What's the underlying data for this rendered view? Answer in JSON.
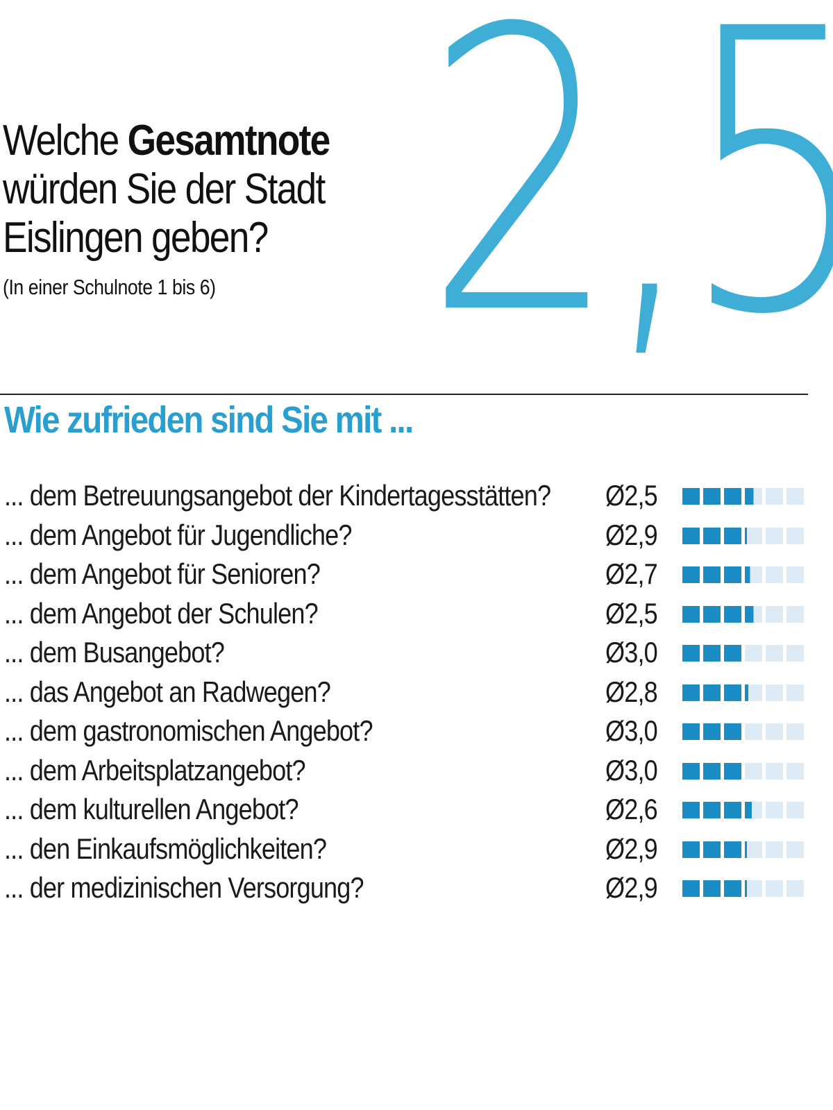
{
  "question": {
    "line1_normal": "Welche ",
    "line1_bold": "Gesamtnote",
    "line2": "würden Sie der Stadt",
    "line3": "Eislingen geben?",
    "subtitle": "(In einer Schulnote 1 bis 6)"
  },
  "overall_grade": "2,5",
  "section_title": "Wie zufrieden sind Sie mit ...",
  "colors": {
    "accent": "#3eaed7",
    "bar_filled": "#1b8cc4",
    "bar_empty": "#dcebf5"
  },
  "chart_data": {
    "type": "bar",
    "title": "Wie zufrieden sind Sie mit ...",
    "scale": "Schulnote 1 bis 6",
    "bar_segments": 6,
    "categories": [
      "... dem Betreuungsangebot der Kindertagesstätten?",
      "... dem Angebot für Jugendliche?",
      "... dem Angebot für Senioren?",
      "... dem Angebot der Schulen?",
      "... dem Busangebot?",
      "... das Angebot an Radwegen?",
      "... dem gastronomischen Angebot?",
      "... dem Arbeitsplatzangebot?",
      "... dem kulturellen Angebot?",
      "... den Einkaufsmöglichkeiten?",
      "... der medizinischen Versorgung?"
    ],
    "values": [
      2.5,
      2.9,
      2.7,
      2.5,
      3.0,
      2.8,
      3.0,
      3.0,
      2.6,
      2.9,
      2.9
    ],
    "value_labels": [
      "Ø2,5",
      "Ø2,9",
      "Ø2,7",
      "Ø2,5",
      "Ø3,0",
      "Ø2,8",
      "Ø3,0",
      "Ø3,0",
      "Ø2,6",
      "Ø2,9",
      "Ø2,9"
    ]
  }
}
